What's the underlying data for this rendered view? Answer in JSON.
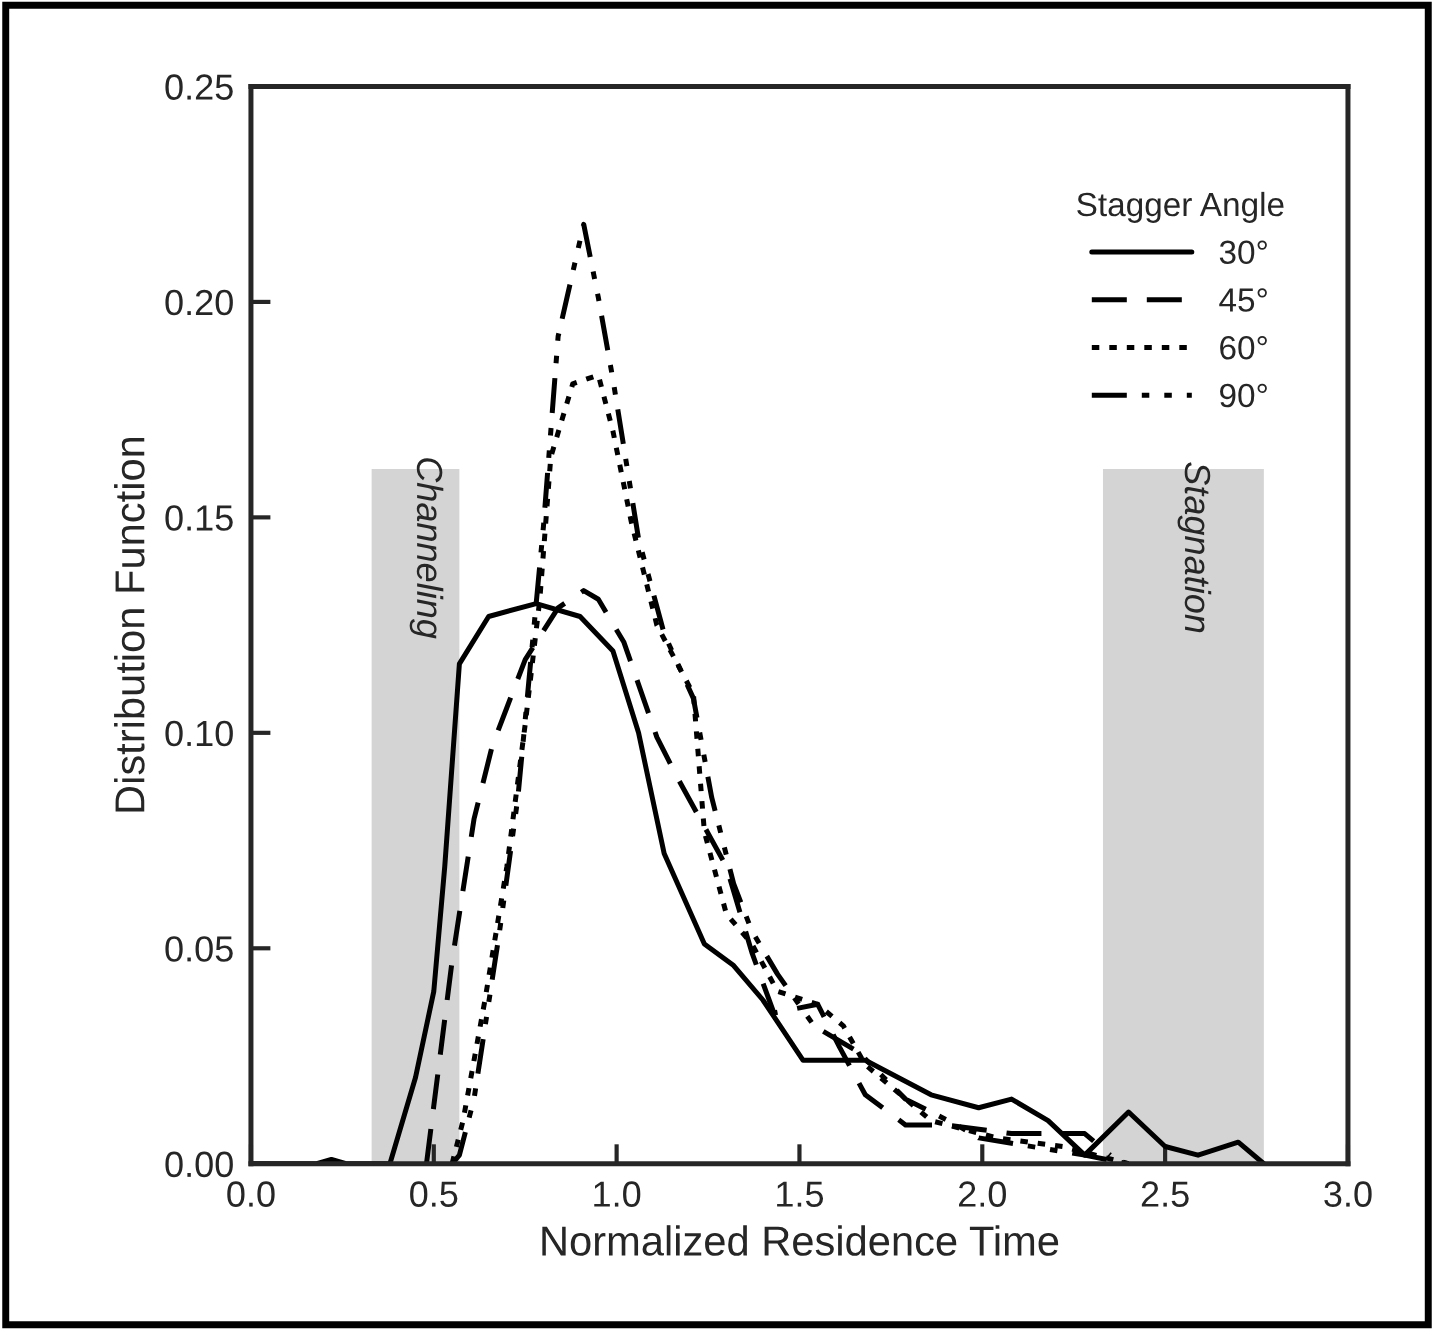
{
  "chart_data": {
    "type": "line",
    "xlabel": "Normalized Residence Time",
    "ylabel": "Distribution Function",
    "legend_title": "Stagger Angle",
    "xlim": [
      0.0,
      3.0
    ],
    "ylim": [
      0.0,
      0.25
    ],
    "xticks": [
      {
        "value": 0.0,
        "label": "0.0"
      },
      {
        "value": 0.5,
        "label": "0.5"
      },
      {
        "value": 1.0,
        "label": "1.0"
      },
      {
        "value": 1.5,
        "label": "1.5"
      },
      {
        "value": 2.0,
        "label": "2.0"
      },
      {
        "value": 2.5,
        "label": "2.5"
      },
      {
        "value": 3.0,
        "label": "3.0"
      }
    ],
    "yticks": [
      {
        "value": 0.0,
        "label": "0.00"
      },
      {
        "value": 0.05,
        "label": "0.05"
      },
      {
        "value": 0.1,
        "label": "0.10"
      },
      {
        "value": 0.15,
        "label": "0.15"
      },
      {
        "value": 0.2,
        "label": "0.20"
      },
      {
        "value": 0.25,
        "label": "0.25"
      }
    ],
    "grid": false,
    "legend": "top right",
    "marker": "none",
    "bands": [
      {
        "axis": "x",
        "from": 0.33,
        "to": 0.57,
        "label": "Channeling",
        "color": "#d4d4d4"
      },
      {
        "axis": "x",
        "from": 2.33,
        "to": 2.77,
        "label": "Stagnation",
        "color": "#d4d4d4"
      }
    ],
    "series": [
      {
        "name": "30°",
        "color": "#000000",
        "line_style": "solid",
        "x": [
          0.0,
          0.18,
          0.22,
          0.26,
          0.38,
          0.45,
          0.5,
          0.53,
          0.57,
          0.65,
          0.78,
          0.9,
          0.99,
          1.06,
          1.13,
          1.24,
          1.32,
          1.4,
          1.51,
          1.62,
          1.68,
          1.86,
          1.99,
          2.08,
          2.18,
          2.28,
          2.4,
          2.5,
          2.59,
          2.7,
          2.77
        ],
        "values": [
          0.0,
          0.0,
          0.001,
          0.0,
          0.0,
          0.02,
          0.04,
          0.069,
          0.116,
          0.127,
          0.13,
          0.127,
          0.119,
          0.1,
          0.072,
          0.051,
          0.046,
          0.038,
          0.024,
          0.024,
          0.024,
          0.016,
          0.013,
          0.015,
          0.01,
          0.002,
          0.012,
          0.004,
          0.002,
          0.005,
          0.0
        ]
      },
      {
        "name": "45°",
        "color": "#000000",
        "line_style": "dashed",
        "x": [
          0.48,
          0.55,
          0.61,
          0.66,
          0.75,
          0.84,
          0.91,
          0.95,
          1.02,
          1.11,
          1.17,
          1.3,
          1.37,
          1.43,
          1.55,
          1.61,
          1.68,
          1.79,
          1.9,
          2.08,
          2.28,
          2.35
        ],
        "values": [
          0.0,
          0.047,
          0.08,
          0.097,
          0.117,
          0.129,
          0.133,
          0.131,
          0.121,
          0.099,
          0.089,
          0.069,
          0.049,
          0.035,
          0.037,
          0.027,
          0.016,
          0.009,
          0.009,
          0.007,
          0.007,
          0.002
        ]
      },
      {
        "name": "60°",
        "color": "#000000",
        "line_style": "dotted",
        "x": [
          0.55,
          0.58,
          0.64,
          0.7,
          0.75,
          0.79,
          0.82,
          0.88,
          0.95,
          0.99,
          1.04,
          1.11,
          1.21,
          1.24,
          1.3,
          1.37,
          1.44,
          1.55,
          1.62,
          1.68,
          1.86,
          2.04,
          2.22,
          2.4
        ],
        "values": [
          0.0,
          0.01,
          0.038,
          0.069,
          0.102,
          0.131,
          0.164,
          0.181,
          0.183,
          0.17,
          0.149,
          0.125,
          0.109,
          0.077,
          0.058,
          0.051,
          0.04,
          0.037,
          0.032,
          0.023,
          0.01,
          0.006,
          0.004,
          0.0
        ]
      },
      {
        "name": "90°",
        "color": "#000000",
        "line_style": "dashdotdot",
        "x": [
          0.55,
          0.57,
          0.61,
          0.68,
          0.73,
          0.8,
          0.84,
          0.91,
          0.95,
          0.99,
          1.06,
          1.13,
          1.21,
          1.26,
          1.32,
          1.37,
          1.44,
          1.54,
          1.66,
          1.79,
          1.93,
          1.99,
          2.28,
          2.4
        ],
        "values": [
          0.0,
          0.002,
          0.015,
          0.054,
          0.085,
          0.148,
          0.192,
          0.218,
          0.201,
          0.182,
          0.145,
          0.123,
          0.108,
          0.085,
          0.065,
          0.054,
          0.044,
          0.032,
          0.026,
          0.015,
          0.009,
          0.006,
          0.002,
          0.0
        ]
      }
    ]
  }
}
